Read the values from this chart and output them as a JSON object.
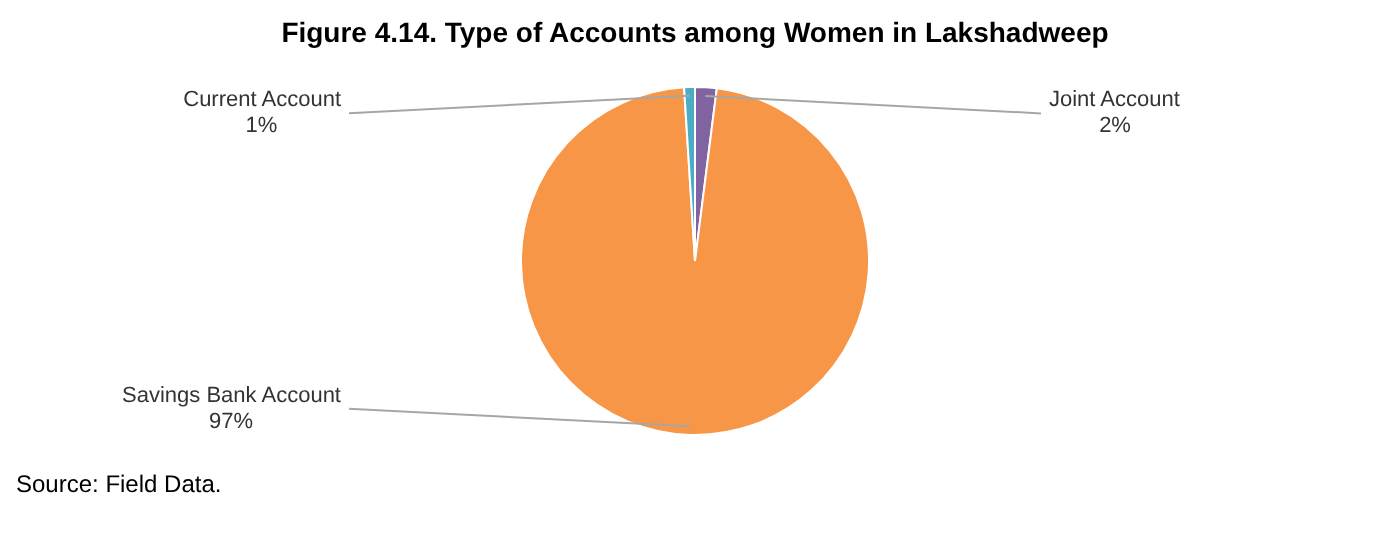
{
  "chart_data": {
    "type": "pie",
    "title": "Figure 4.14. Type of Accounts among Women in Lakshadweep",
    "categories": [
      "Joint Account",
      "Savings Bank Account",
      "Current Account"
    ],
    "values": [
      2,
      97,
      1
    ],
    "colors": [
      "#8064a2",
      "#f79646",
      "#4bacc6"
    ],
    "value_labels": [
      "2%",
      "97%",
      "1%"
    ],
    "legend": false,
    "annotations": [
      "Source: Field Data."
    ]
  }
}
